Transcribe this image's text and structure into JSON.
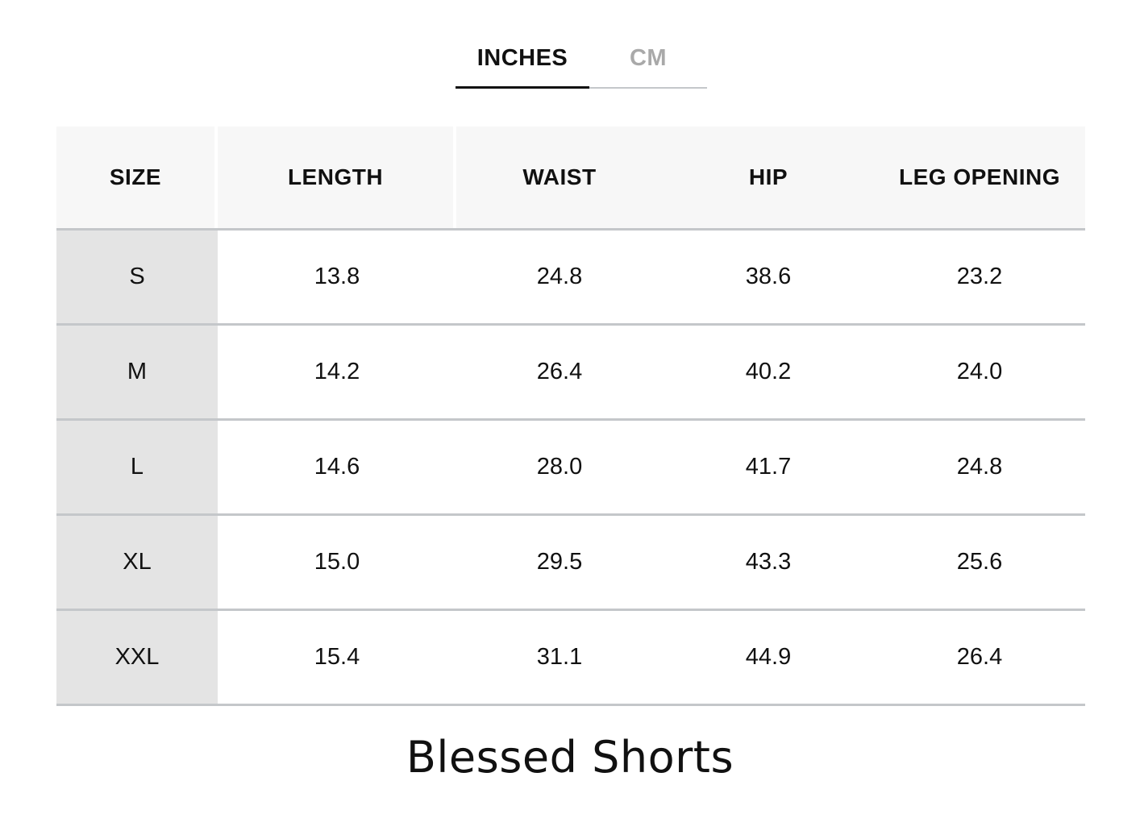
{
  "tabs": {
    "inches_label": "INCHES",
    "cm_label": "CM",
    "active": "INCHES"
  },
  "table": {
    "headers": [
      "SIZE",
      "LENGTH",
      "WAIST",
      "HIP",
      "LEG OPENING"
    ],
    "rows": [
      [
        "S",
        "13.8",
        "24.8",
        "38.6",
        "23.2"
      ],
      [
        "M",
        "14.2",
        "26.4",
        "40.2",
        "24.0"
      ],
      [
        "L",
        "14.6",
        "28.0",
        "41.7",
        "24.8"
      ],
      [
        "XL",
        "15.0",
        "29.5",
        "43.3",
        "25.6"
      ],
      [
        "XXL",
        "15.4",
        "31.1",
        "44.9",
        "26.4"
      ]
    ]
  },
  "product": {
    "title": "Blessed Shorts"
  },
  "colors": {
    "text": "#111111",
    "inactive_tab": "#a9a9a9",
    "divider": "#c4c7ca",
    "header_bg": "#f7f7f7",
    "size_col_bg": "#e4e4e4"
  }
}
